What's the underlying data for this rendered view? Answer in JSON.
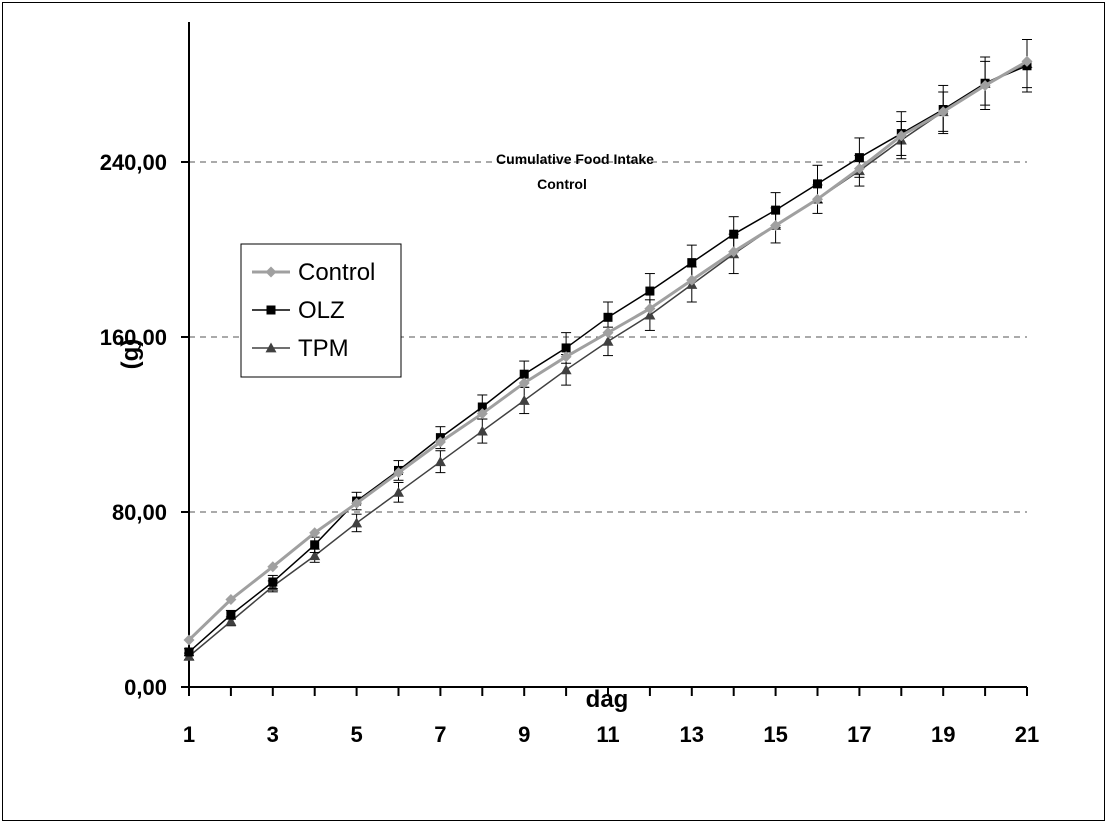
{
  "chart_data": {
    "type": "line",
    "title": "Cumulative Food Intake Control",
    "title_lines": [
      "Cumulative Food Intake",
      "Control"
    ],
    "xlabel": "dag",
    "ylabel": "(g)",
    "xlim": [
      1,
      21
    ],
    "ylim": [
      0,
      280
    ],
    "x_ticks": [
      1,
      3,
      5,
      7,
      9,
      11,
      13,
      15,
      17,
      19,
      21
    ],
    "y_ticks": [
      0,
      80,
      160,
      240
    ],
    "y_tick_labels": [
      "0,00",
      "80,00",
      "160,00",
      "240,00"
    ],
    "grid": "horizontal-dashed",
    "legend_position": "left",
    "x": [
      1,
      2,
      3,
      4,
      5,
      6,
      7,
      8,
      9,
      10,
      11,
      12,
      13,
      14,
      15,
      16,
      17,
      18,
      19,
      20,
      21
    ],
    "series": [
      {
        "name": "Control",
        "color": "#a0a0a0",
        "marker": "diamond",
        "values": [
          21.5,
          40,
          55,
          70.5,
          84,
          98,
          112,
          125,
          139,
          151,
          162,
          173,
          186,
          199,
          211,
          223,
          237,
          252,
          263,
          275,
          286
        ]
      },
      {
        "name": "OLZ",
        "color": "#000000",
        "marker": "square",
        "values": [
          16,
          33,
          48,
          65,
          85,
          99,
          114,
          128,
          143,
          155,
          169,
          181,
          194,
          207,
          218,
          230,
          242,
          253,
          264,
          276,
          284
        ],
        "error": [
          1.5,
          2,
          3,
          3.5,
          4,
          4.5,
          5,
          5.5,
          6,
          7,
          7,
          8,
          8,
          8,
          8,
          8.5,
          9,
          10,
          11,
          12,
          12
        ]
      },
      {
        "name": "TPM",
        "color": "#404040",
        "marker": "triangle",
        "values": [
          14,
          30,
          46,
          60,
          75,
          89,
          103,
          117,
          131,
          145,
          158,
          170,
          184,
          198,
          211,
          223,
          236,
          250,
          263,
          276,
          285
        ],
        "error": [
          1.5,
          2,
          2.5,
          3,
          4,
          4.5,
          5,
          5.5,
          6,
          7,
          6.5,
          7,
          8,
          9,
          8,
          6.5,
          7,
          8.5,
          9,
          10,
          11
        ]
      }
    ]
  }
}
